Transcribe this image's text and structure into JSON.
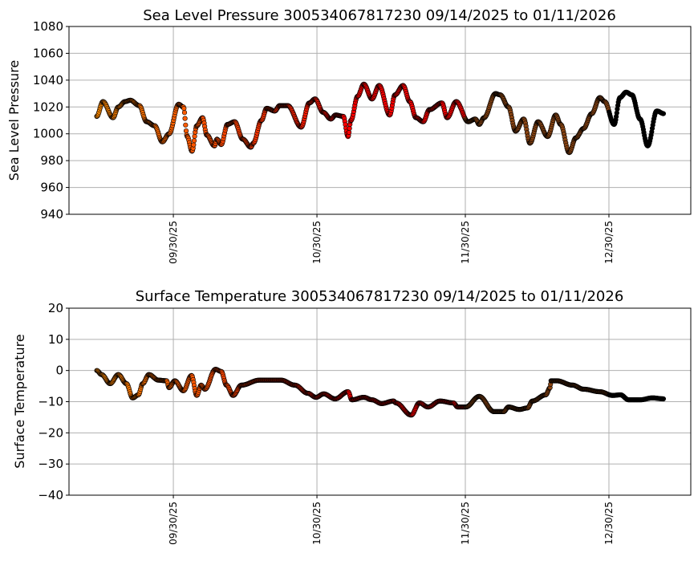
{
  "chart_data": [
    {
      "type": "scatter",
      "title": "Sea Level Pressure 300534067817230  09/14/2025 to 01/11/2026",
      "xlabel": "",
      "ylabel": "Sea Level Pressure",
      "x_units": "days since 09/14/2025",
      "xlim": [
        -5.8,
        124.1
      ],
      "ylim": [
        940,
        1080
      ],
      "yticks": [
        940,
        960,
        980,
        1000,
        1020,
        1040,
        1060,
        1080
      ],
      "xticks": [
        {
          "day": 16,
          "label": "09/30/25"
        },
        {
          "day": 46,
          "label": "10/30/25"
        },
        {
          "day": 77,
          "label": "11/30/25"
        },
        {
          "day": 107,
          "label": "12/30/25"
        }
      ],
      "grid": true,
      "x": [
        0,
        1.3,
        3.4,
        4.5,
        5.9,
        7,
        8.9,
        10.4,
        12.1,
        13.7,
        15.1,
        17.1,
        18.1,
        18.9,
        19.9,
        20.9,
        22.1,
        23,
        24.6,
        25.1,
        26,
        27.3,
        28.8,
        30.5,
        32.2,
        32.7,
        34.4,
        35.5,
        37.2,
        38.2,
        39.9,
        42.7,
        44.4,
        45.6,
        47.3,
        48.9,
        49.9,
        51.5,
        52.5,
        53.1,
        54.5,
        55.8,
        57.5,
        59,
        61.2,
        62.3,
        64,
        65.4,
        66.7,
        68.2,
        69.5,
        72.1,
        73.2,
        75.1,
        77.6,
        79.1,
        79.9,
        80.9,
        83.3,
        84.3,
        86,
        87.5,
        89.2,
        90.5,
        92.2,
        94.2,
        95.9,
        96.9,
        98.7,
        100.1,
        101.7,
        103.4,
        105.1,
        106.1,
        108.1,
        109.3,
        110.6,
        111.8,
        113.5,
        115.1,
        117,
        118.5
      ],
      "y": [
        1013,
        1024,
        1012,
        1020,
        1024,
        1025,
        1021,
        1009,
        1006,
        994,
        1000,
        1022,
        1020,
        998,
        987,
        1006,
        1012,
        999,
        991,
        996,
        992,
        1007,
        1009,
        996,
        990,
        993,
        1010,
        1019,
        1017,
        1021,
        1021,
        1005,
        1023,
        1026,
        1016,
        1011,
        1014,
        1013,
        998,
        1010,
        1028,
        1037,
        1026,
        1036,
        1014,
        1029,
        1036,
        1024,
        1012,
        1009,
        1018,
        1023,
        1012,
        1024,
        1009,
        1011,
        1007,
        1012,
        1030,
        1029,
        1020,
        1002,
        1011,
        993,
        1009,
        998,
        1014,
        1007,
        986,
        997,
        1004,
        1015,
        1027,
        1024,
        1007,
        1027,
        1031,
        1029,
        1011,
        991,
        1017,
        1015
      ]
    },
    {
      "type": "scatter",
      "title": "Surface Temperature 300534067817230  09/14/2025 to 01/11/2026",
      "xlabel": "",
      "ylabel": "Surface Temperature",
      "x_units": "days since 09/14/2025",
      "xlim": [
        -5.8,
        124.1
      ],
      "ylim": [
        -40,
        20
      ],
      "yticks": [
        -40,
        -30,
        -20,
        -10,
        0,
        10,
        20
      ],
      "xticks": [
        {
          "day": 16,
          "label": "09/30/25"
        },
        {
          "day": 46,
          "label": "10/30/25"
        },
        {
          "day": 77,
          "label": "11/30/25"
        },
        {
          "day": 107,
          "label": "12/30/25"
        }
      ],
      "grid": true,
      "x": [
        0,
        1,
        2.8,
        4.5,
        6.2,
        7.5,
        8.7,
        9.6,
        10.9,
        12.9,
        14.6,
        15.1,
        16.3,
        18.1,
        19.8,
        20.9,
        21.8,
        22.6,
        24.8,
        26,
        27.1,
        28.5,
        30.2,
        34,
        38.5,
        41.4,
        44.1,
        45.8,
        47.4,
        49.8,
        52.5,
        53.3,
        55.8,
        57.5,
        59.5,
        62,
        62.5,
        65.7,
        67.4,
        69.2,
        71.7,
        74.5,
        75.4,
        77.1,
        79.9,
        83,
        85,
        86,
        88.3,
        90,
        91,
        93.8,
        94.7,
        94.9,
        96.1,
        99.4,
        101.7,
        105.1,
        107.8,
        109.4,
        111.1,
        113.5,
        116.1,
        118.5
      ],
      "y": [
        0,
        -1.3,
        -4.2,
        -1.3,
        -4.2,
        -8.8,
        -7.8,
        -4.2,
        -1.3,
        -3.1,
        -3.3,
        -5.5,
        -3.3,
        -6.5,
        -1.6,
        -8,
        -4.7,
        -6,
        0.4,
        -0.3,
        -4.7,
        -8,
        -4.7,
        -3.1,
        -3.1,
        -4.7,
        -7.3,
        -8.6,
        -7.5,
        -9.1,
        -6.8,
        -9.4,
        -8.6,
        -9.4,
        -10.6,
        -9.8,
        -10.4,
        -14.3,
        -10.4,
        -11.7,
        -9.8,
        -10.4,
        -11.7,
        -11.7,
        -8.3,
        -13.2,
        -13.2,
        -11.7,
        -12.5,
        -12,
        -9.8,
        -7.8,
        -5.5,
        -3.3,
        -3.3,
        -4.7,
        -6,
        -6.8,
        -8,
        -7.8,
        -9.4,
        -9.4,
        -8.8,
        -9.1
      ]
    }
  ],
  "colors": {
    "segments": [
      {
        "from": 0,
        "to": 48,
        "start": "#ff8c00",
        "end": "#ff1000"
      },
      {
        "from": 48,
        "to": 77,
        "start": "#ff0000",
        "end": "#ff0000"
      },
      {
        "from": 77,
        "to": 107,
        "start": "#8b4513",
        "end": "#8b4513"
      },
      {
        "from": 107,
        "to": 125,
        "start": "#000000",
        "end": "#000000"
      }
    ],
    "grid": "#b0b0b0",
    "marker_edge": "#000000"
  }
}
